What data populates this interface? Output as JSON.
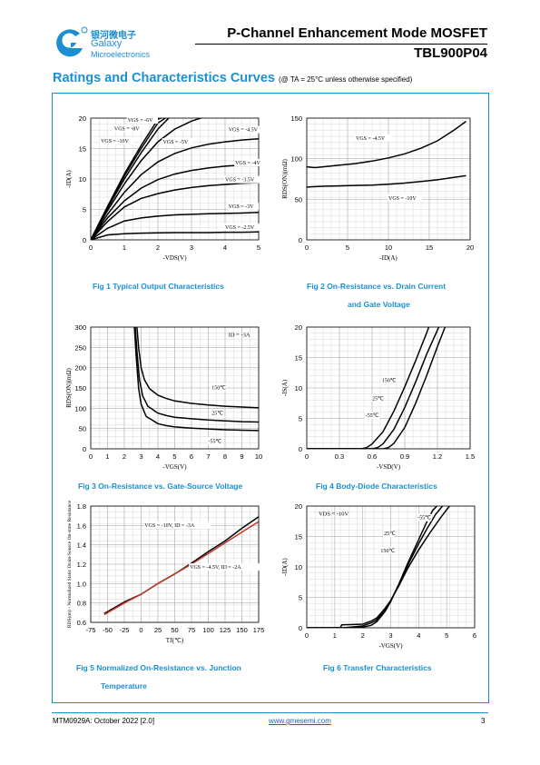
{
  "header": {
    "logo_cn": "银河微电子",
    "logo_en1": "Galaxy",
    "logo_en2": "Microelectronics",
    "title": "P-Channel Enhancement Mode MOSFET",
    "part": "TBL900P04"
  },
  "section": {
    "title": "Ratings and Characteristics Curves",
    "note": "(@ TA = 25°C unless otherwise specified)"
  },
  "captions": {
    "fig1": "Fig 1    Typical Output Characteristics",
    "fig2a": "Fig 2    On-Resistance vs. Drain Current",
    "fig2b": "and Gate Voltage",
    "fig3": "Fig 3    On-Resistance vs. Gate-Source Voltage",
    "fig4": "Fig 4    Body-Diode Characteristics",
    "fig5a": "Fig 5    Normalized On-Resistance vs. Junction",
    "fig5b": "Temperature",
    "fig6": "Fig 6    Transfer Characteristics"
  },
  "footer": {
    "doc": "MTM0929A: October 2022 [2.0]",
    "url": "www.gmesemi.com",
    "page": "3"
  },
  "chart_data": [
    {
      "id": "fig1",
      "type": "line",
      "xlabel": "-VDS(V)",
      "ylabel": "-ID(A)",
      "xlim": [
        0,
        5
      ],
      "ylim": [
        0,
        20
      ],
      "xticks": [
        0,
        1,
        2,
        3,
        4,
        5
      ],
      "yticks": [
        0,
        5,
        10,
        15,
        20
      ],
      "series": [
        {
          "name": "VGS = -6V",
          "x": [
            0,
            0.5,
            1,
            1.5,
            2,
            2.5,
            3,
            3.5,
            4,
            4.5,
            5
          ],
          "y": [
            0,
            5.2,
            10,
            14.3,
            18.2,
            21,
            21,
            21,
            21,
            21,
            21
          ]
        },
        {
          "name": "VGS = -8V",
          "x": [
            0,
            0.5,
            1,
            1.5,
            2,
            2.5,
            3,
            3.5,
            4,
            4.5,
            5
          ],
          "y": [
            0,
            5.4,
            10.5,
            15,
            19.2,
            21,
            21,
            21,
            21,
            21,
            21
          ]
        },
        {
          "name": "VGS = -10V",
          "x": [
            0,
            0.5,
            1,
            1.5,
            2,
            2.5,
            3,
            3.5,
            4,
            4.5,
            5
          ],
          "y": [
            0,
            5.5,
            10.8,
            15.5,
            19.8,
            21,
            21,
            21,
            21,
            21,
            21
          ]
        },
        {
          "name": "VGS = -5V",
          "x": [
            0,
            0.5,
            1,
            1.5,
            2,
            2.5,
            3,
            3.5,
            4,
            4.5,
            5
          ],
          "y": [
            0,
            4.8,
            9.2,
            13,
            16.1,
            18.2,
            19.5,
            20.4,
            21,
            21,
            21
          ]
        },
        {
          "name": "VGS = -4.5V",
          "x": [
            0,
            0.5,
            1,
            1.5,
            2,
            2.5,
            3,
            3.5,
            4,
            4.5,
            5
          ],
          "y": [
            0,
            4.2,
            7.8,
            10.7,
            12.8,
            14.2,
            15.1,
            15.7,
            16.1,
            16.4,
            16.6
          ]
        },
        {
          "name": "VGS = -4V",
          "x": [
            0,
            0.5,
            1,
            1.5,
            2,
            2.5,
            3,
            3.5,
            4,
            4.5,
            5
          ],
          "y": [
            0,
            3.6,
            6.4,
            8.5,
            9.9,
            10.8,
            11.4,
            11.8,
            12.1,
            12.3,
            12.5
          ]
        },
        {
          "name": "VGS = -3.5V",
          "x": [
            0,
            0.5,
            1,
            1.5,
            2,
            2.5,
            3,
            3.5,
            4,
            4.5,
            5
          ],
          "y": [
            0,
            3,
            5.4,
            6.8,
            7.6,
            8.2,
            8.6,
            8.9,
            9.1,
            9.3,
            9.4
          ]
        },
        {
          "name": "VGS = -3V",
          "x": [
            0,
            0.5,
            1,
            1.5,
            2,
            2.5,
            3,
            3.5,
            4,
            4.5,
            5
          ],
          "y": [
            0,
            1.9,
            3.1,
            3.6,
            3.9,
            4.1,
            4.2,
            4.3,
            4.35,
            4.4,
            4.5
          ]
        },
        {
          "name": "VGS = -2.5V",
          "x": [
            0,
            0.5,
            1,
            1.5,
            2,
            2.5,
            3,
            3.5,
            4,
            4.5,
            5
          ],
          "y": [
            0,
            0.8,
            1,
            1.1,
            1.15,
            1.2,
            1.2,
            1.2,
            1.25,
            1.25,
            1.3
          ]
        }
      ]
    },
    {
      "id": "fig2",
      "type": "line",
      "xlabel": "-ID(A)",
      "ylabel": "RDS(ON)(mΩ)",
      "xlim": [
        0,
        20
      ],
      "ylim": [
        0,
        150
      ],
      "xticks": [
        0,
        5,
        10,
        15,
        20
      ],
      "yticks": [
        0,
        50,
        100,
        150
      ],
      "series": [
        {
          "name": "VGS = -4.5V",
          "x": [
            0,
            1,
            2,
            4,
            6,
            8,
            10,
            12,
            14,
            16,
            18,
            19.5
          ],
          "y": [
            90,
            89,
            90,
            92,
            94,
            97,
            101,
            106,
            113,
            122,
            135,
            146
          ]
        },
        {
          "name": "VGS = -10V",
          "x": [
            0,
            2,
            4,
            6,
            8,
            10,
            12,
            14,
            16,
            18,
            19.5
          ],
          "y": [
            65,
            66,
            66.5,
            67,
            67.5,
            68.5,
            70,
            72,
            74,
            77,
            79
          ]
        }
      ]
    },
    {
      "id": "fig3",
      "type": "line",
      "xlabel": "-VGS(V)",
      "ylabel": "RDS(ON)(mΩ)",
      "xlim": [
        0,
        10
      ],
      "ylim": [
        0,
        300
      ],
      "xticks": [
        0,
        1,
        2,
        3,
        4,
        5,
        6,
        7,
        8,
        9,
        10
      ],
      "yticks": [
        0,
        50,
        100,
        150,
        200,
        250,
        300
      ],
      "annotation": "ID = -3A",
      "series": [
        {
          "name": "150℃",
          "x": [
            2.75,
            2.85,
            3,
            3.2,
            3.5,
            4,
            4.5,
            5,
            6,
            7,
            8,
            9,
            10
          ],
          "y": [
            300,
            250,
            200,
            170,
            148,
            132,
            124,
            118,
            112,
            108,
            105,
            103,
            101
          ]
        },
        {
          "name": "25℃",
          "x": [
            2.65,
            2.75,
            2.9,
            3.1,
            3.4,
            4,
            4.5,
            5,
            6,
            7,
            8,
            9,
            10
          ],
          "y": [
            300,
            240,
            170,
            130,
            105,
            88,
            82,
            78,
            74,
            71,
            69,
            67,
            66
          ]
        },
        {
          "name": "-55℃",
          "x": [
            2.6,
            2.7,
            2.85,
            3,
            3.3,
            4,
            4.5,
            5,
            6,
            7,
            8,
            9,
            10
          ],
          "y": [
            300,
            230,
            150,
            110,
            80,
            62,
            57,
            54,
            51,
            49,
            47,
            46,
            45
          ]
        }
      ]
    },
    {
      "id": "fig4",
      "type": "line",
      "xlabel": "-VSD(V)",
      "ylabel": "-IS(A)",
      "xlim": [
        0,
        1.5
      ],
      "ylim": [
        0,
        20
      ],
      "xticks": [
        0,
        0.3,
        0.6,
        0.9,
        1.2,
        1.5
      ],
      "xtick_labels": [
        "0",
        "0.3",
        "0.6",
        "0.9",
        "1.2",
        "1.5"
      ],
      "yticks": [
        0,
        5,
        10,
        15,
        20
      ],
      "series": [
        {
          "name": "150℃",
          "x": [
            0,
            0.5,
            0.55,
            0.6,
            0.7,
            0.8,
            0.9,
            1.0,
            1.1,
            1.12
          ],
          "y": [
            0,
            0,
            0.2,
            0.8,
            2.8,
            6.2,
            10.2,
            14.5,
            19,
            20
          ]
        },
        {
          "name": "25℃",
          "x": [
            0,
            0.6,
            0.65,
            0.7,
            0.8,
            0.9,
            1.0,
            1.1,
            1.2,
            1.24
          ],
          "y": [
            0,
            0,
            0.2,
            0.8,
            3.2,
            6.8,
            11,
            15.5,
            19.5,
            21
          ]
        },
        {
          "name": "-55℃",
          "x": [
            0,
            0.7,
            0.75,
            0.8,
            0.9,
            1.0,
            1.1,
            1.2,
            1.27,
            1.3
          ],
          "y": [
            0,
            0,
            0.2,
            0.9,
            3.5,
            7.5,
            12,
            16.8,
            20,
            21
          ]
        }
      ]
    },
    {
      "id": "fig5",
      "type": "line",
      "xlabel": "TJ(℃)",
      "ylabel": "RDS(on) - Normalized Static Drain-Source On-state Resistance",
      "xlim": [
        -75,
        175
      ],
      "ylim": [
        0.6,
        1.8
      ],
      "xticks": [
        -75,
        -50,
        -25,
        0,
        25,
        50,
        75,
        100,
        125,
        150,
        175
      ],
      "yticks": [
        0.6,
        0.8,
        1.0,
        1.2,
        1.4,
        1.6,
        1.8
      ],
      "series": [
        {
          "name": "VGS = -10V, ID = -3A",
          "x": [
            -55,
            -25,
            0,
            25,
            50,
            75,
            100,
            125,
            150,
            175
          ],
          "y": [
            0.69,
            0.81,
            0.89,
            1.0,
            1.1,
            1.21,
            1.33,
            1.44,
            1.57,
            1.69
          ]
        },
        {
          "name": "VGS = -4.5V, ID = -2A",
          "x": [
            -55,
            -25,
            0,
            25,
            50,
            75,
            100,
            125,
            150,
            175
          ],
          "y": [
            0.68,
            0.8,
            0.89,
            1.0,
            1.1,
            1.2,
            1.31,
            1.42,
            1.53,
            1.64
          ]
        }
      ]
    },
    {
      "id": "fig6",
      "type": "line",
      "xlabel": "-VGS(V)",
      "ylabel": "-ID(A)",
      "xlim": [
        0,
        6
      ],
      "ylim": [
        0,
        20
      ],
      "xticks": [
        0,
        1,
        2,
        3,
        4,
        5,
        6
      ],
      "yticks": [
        0,
        5,
        10,
        15,
        20
      ],
      "annotation": "VDS = -10V",
      "series": [
        {
          "name": "-55℃",
          "x": [
            0,
            1.5,
            2,
            2.3,
            2.5,
            2.8,
            3,
            3.3,
            3.6,
            4,
            4.3,
            4.5,
            4.65
          ],
          "y": [
            0,
            0,
            0.1,
            0.4,
            1,
            2.7,
            4.3,
            7.3,
            10.5,
            14.5,
            17.5,
            19.3,
            20
          ]
        },
        {
          "name": "25℃",
          "x": [
            0,
            1.3,
            2,
            2.3,
            2.5,
            2.8,
            3,
            3.3,
            3.6,
            4,
            4.3,
            4.6,
            4.85
          ],
          "y": [
            0,
            0,
            0.3,
            0.8,
            1.3,
            2.9,
            4.4,
            7.2,
            10.2,
            13.8,
            16.3,
            18.6,
            20
          ]
        },
        {
          "name": "150℃",
          "x": [
            0,
            1.2,
            1.25,
            2,
            2.3,
            2.5,
            2.8,
            3,
            3.3,
            3.6,
            4,
            4.4,
            4.8,
            5.1
          ],
          "y": [
            0,
            0,
            0.5,
            0.6,
            1.1,
            1.6,
            3.2,
            4.5,
            7,
            9.7,
            12.8,
            15.6,
            18.2,
            20
          ]
        }
      ]
    }
  ]
}
